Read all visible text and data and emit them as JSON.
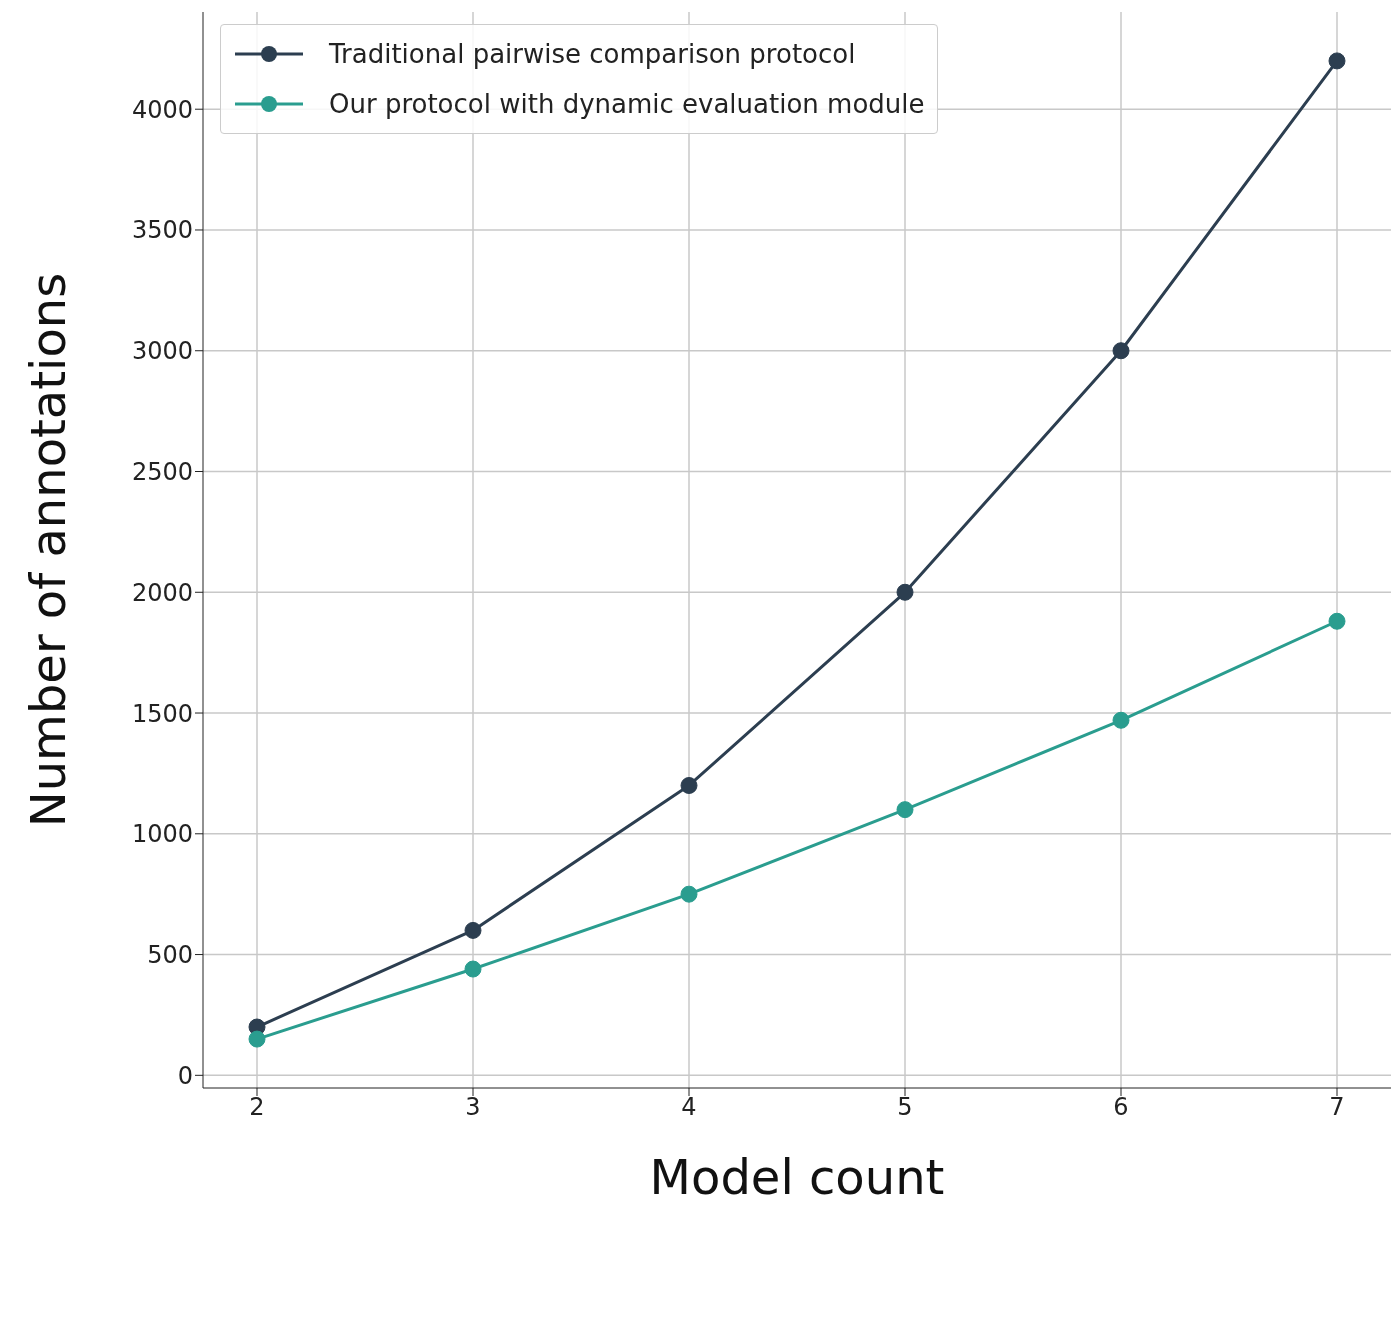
{
  "chart_data": {
    "type": "line",
    "xlabel": "Model count",
    "ylabel": "Number of annotations",
    "x": [
      2,
      3,
      4,
      5,
      6,
      7
    ],
    "series": [
      {
        "name": "Traditional pairwise comparison protocol",
        "color": "#2c3e50",
        "values": [
          200,
          600,
          1200,
          2000,
          3000,
          4200
        ]
      },
      {
        "name": "Our protocol with dynamic evaluation module",
        "color": "#2a9d8f",
        "values": [
          150,
          440,
          750,
          1100,
          1470,
          1880
        ]
      }
    ],
    "xlim": [
      1.75,
      7.25
    ],
    "xticks": [
      2,
      3,
      4,
      5,
      6,
      7
    ],
    "ylim": [
      -52.5,
      4402.5
    ],
    "yticks": [
      0,
      500,
      1000,
      1500,
      2000,
      2500,
      3000,
      3500,
      4000
    ],
    "grid": true,
    "legend": "top left",
    "marker": "circle",
    "line_style": "solid"
  }
}
